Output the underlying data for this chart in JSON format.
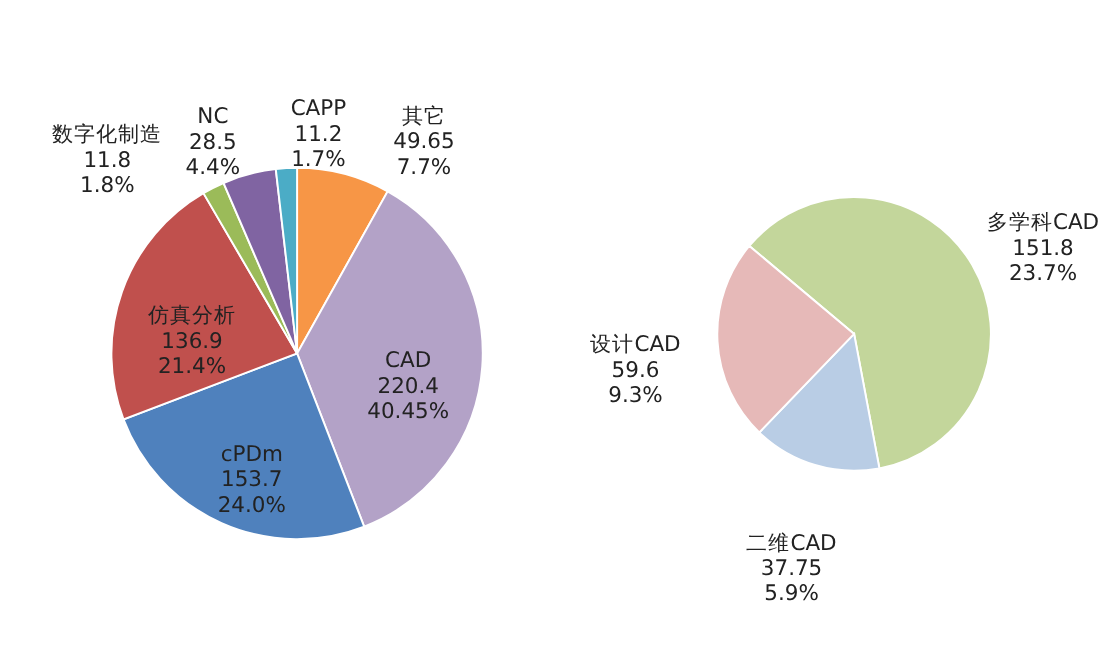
{
  "chart_data": [
    {
      "type": "pie",
      "categories": [
        "其它",
        "CAD",
        "cPDm",
        "仿真分析",
        "数字化制造",
        "NC",
        "CAPP"
      ],
      "values": [
        49.65,
        220.4,
        153.7,
        136.9,
        11.8,
        28.5,
        11.2
      ],
      "colors": [
        "#f79646",
        "#b3a2c7",
        "#4f81bd",
        "#c0504d",
        "#9bbb59",
        "#8064a2",
        "#4bacc6"
      ],
      "value_labels": [
        "49.65 7.7%",
        "220.4 40.45%",
        "153.7 24.0%",
        "136.9 21.4%",
        "11.8 1.8%",
        "28.5 4.4%",
        "11.2 1.7%"
      ]
    },
    {
      "type": "pie",
      "categories": [
        "多学科CAD",
        "二维CAD",
        "设计CAD"
      ],
      "values": [
        151.8,
        37.75,
        59.6
      ],
      "colors": [
        "#c3d69b",
        "#b9cde5",
        "#e6b9b8"
      ],
      "value_labels": [
        "151.8 23.7%",
        "37.75 5.9%",
        "59.6 9.3%"
      ]
    }
  ]
}
